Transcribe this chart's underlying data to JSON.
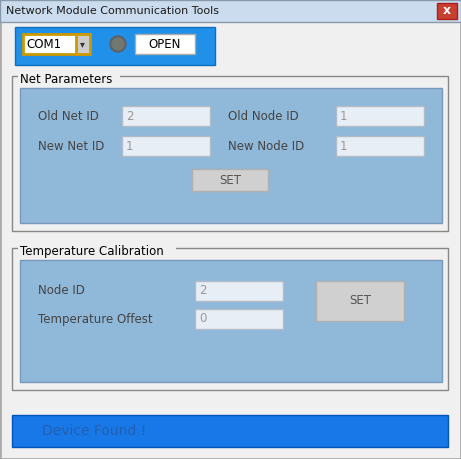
{
  "title": "Network Module Communication Tools",
  "bg_color": "#f0f0f0",
  "titlebar_grad_top": "#dce8f5",
  "titlebar_grad_bot": "#c8d8ec",
  "close_btn_color": "#c84030",
  "close_btn_ec": "#a82020",
  "blue_bar_color": "#2090e8",
  "panel_bg": "#90b8d8",
  "input_bg": "#e8eef5",
  "input_border": "#b0bcc8",
  "gray_btn": "#d0d0d0",
  "gray_btn_ec": "#b0b0b0",
  "com_label": "COM1",
  "com_border": "#cc9900",
  "open_btn": "OPEN",
  "net_params_title": "Net Parameters",
  "old_net_id_label": "Old Net ID",
  "old_net_id_value": "2",
  "old_node_id_label": "Old Node ID",
  "old_node_id_value": "1",
  "new_net_id_label": "New Net ID",
  "new_net_id_value": "1",
  "new_node_id_label": "New Node ID",
  "new_node_id_value": "1",
  "set_btn": "SET",
  "temp_calib_title": "Temperature Calibration",
  "node_id_label": "Node ID",
  "node_id_value": "2",
  "temp_offset_label": "Temperature Offest",
  "temp_offset_value": "0",
  "device_found": "Device Found !",
  "device_found_bg": "#1878e8",
  "device_found_color": "#2060b0",
  "group_border": "#888888",
  "label_color": "#444444",
  "value_color": "#999999",
  "window_border": "#aaaaaa"
}
